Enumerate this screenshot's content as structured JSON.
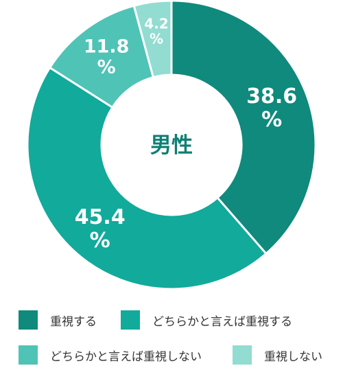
{
  "chart_data": {
    "type": "pie",
    "center_label": "男性",
    "slices": [
      {
        "label": "重視する",
        "value": 38.6,
        "display": "38.6",
        "unit": "%",
        "color": "#0f8a7d"
      },
      {
        "label": "どちらかと言えば重視する",
        "value": 45.4,
        "display": "45.4",
        "unit": "%",
        "color": "#12aa9b"
      },
      {
        "label": "どちらかと言えば重視しない",
        "value": 11.8,
        "display": "11.8",
        "unit": "%",
        "color": "#4fc3b6"
      },
      {
        "label": "重視しない",
        "value": 4.2,
        "display": "4.2",
        "unit": "%",
        "color": "#92dcd1"
      }
    ],
    "legend": [
      {
        "label": "重視する",
        "color": "#0f8a7d"
      },
      {
        "label": "どちらかと言えば重視する",
        "color": "#12aa9b"
      },
      {
        "label": "どちらかと言えば重視しない",
        "color": "#4fc3b6"
      },
      {
        "label": "重視しない",
        "color": "#92dcd1"
      }
    ]
  }
}
